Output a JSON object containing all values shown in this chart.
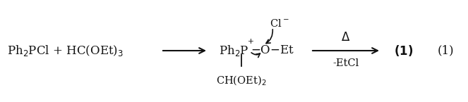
{
  "background_color": "#ffffff",
  "figsize": [
    6.63,
    1.45
  ],
  "dpi": 100,
  "font_color": "#111111",
  "font_size": 12,
  "font_size_small": 10.5
}
